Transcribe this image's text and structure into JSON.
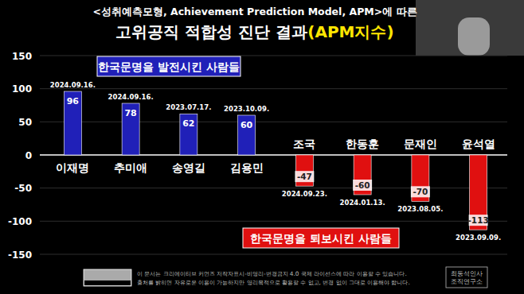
{
  "chart_data": {
    "type": "bar",
    "subtitle": "<성취예측모형, Achievement Prediction Model, APM>에 따른",
    "title": "고위공직 적합성 진단 결과(APM지수)",
    "categories": [
      "이재명",
      "추미애",
      "송영길",
      "김용민",
      "조국",
      "한동훈",
      "문재인",
      "윤석열"
    ],
    "values": [
      96,
      78,
      62,
      60,
      -47,
      -60,
      -70,
      -113
    ],
    "colors": [
      "#2020b8",
      "#2020b8",
      "#2020b8",
      "#2020b8",
      "#e01010",
      "#e01010",
      "#e01010",
      "#e01010"
    ],
    "dates": [
      "2024.09.16.",
      "2024.09.16.",
      "2023.07.17.",
      "2023.10.09.",
      "2024.09.23.",
      "2024.01.13.",
      "2023.08.05.",
      "2023.09.09."
    ],
    "annotations": [
      "한국문명을 발전시킨 사람들",
      "한국문명을 퇴보시킨 사람들"
    ],
    "ylim": [
      -150,
      150
    ],
    "yticks": [
      -150,
      -100,
      -50,
      0,
      50,
      100,
      150
    ],
    "grid": true,
    "data_labels": true,
    "footer": [
      "이 문서는 크리에이티브 커먼즈 저작자표시-비영리-변경금지 4.0 국제 라이선스에 따라 이용할 수 있습니다.",
      "출처를 밝히면 자유로운 이용이 가능하지만 영리목적으로 활용할 수 없고, 변경 없이 그대로 이용해야 합니다."
    ],
    "credit": [
      "최동석인사",
      "조직연구소"
    ]
  }
}
